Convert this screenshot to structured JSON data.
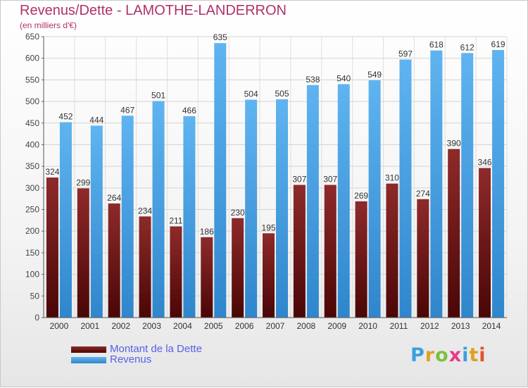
{
  "title": "Revenus/Dette - LAMOTHE-LANDERRON",
  "subtitle": "(en milliers d'€)",
  "brand": {
    "text": "Proxiti",
    "letters": [
      {
        "ch": "P",
        "color": "#3aa0e0"
      },
      {
        "ch": "r",
        "color": "#e0a020"
      },
      {
        "ch": "o",
        "color": "#7bc142"
      },
      {
        "ch": "x",
        "color": "#e53a8a"
      },
      {
        "ch": "i",
        "color": "#3aa0e0"
      },
      {
        "ch": "t",
        "color": "#e0a020"
      },
      {
        "ch": "i",
        "color": "#e0542a"
      }
    ]
  },
  "legend": [
    {
      "label": "Montant de la Dette",
      "color": "#7a1818"
    },
    {
      "label": "Revenus",
      "color": "#4aa3e6"
    }
  ],
  "chart_data": {
    "type": "bar",
    "categories": [
      "2000",
      "2001",
      "2002",
      "2003",
      "2004",
      "2005",
      "2006",
      "2007",
      "2008",
      "2009",
      "2010",
      "2011",
      "2012",
      "2013",
      "2014"
    ],
    "series": [
      {
        "name": "Montant de la Dette",
        "color": "#7a1818",
        "values": [
          324,
          299,
          264,
          234,
          211,
          186,
          230,
          195,
          307,
          307,
          269,
          310,
          274,
          390,
          346
        ]
      },
      {
        "name": "Revenus",
        "color": "#4aa3e6",
        "values": [
          452,
          444,
          467,
          501,
          466,
          635,
          504,
          505,
          538,
          540,
          549,
          597,
          618,
          612,
          619
        ]
      }
    ],
    "ylim": [
      0,
      650
    ],
    "yticks": [
      0,
      50,
      100,
      150,
      200,
      250,
      300,
      350,
      400,
      450,
      500,
      550,
      600,
      650
    ],
    "grid": true,
    "legend_position": "bottom-left"
  }
}
